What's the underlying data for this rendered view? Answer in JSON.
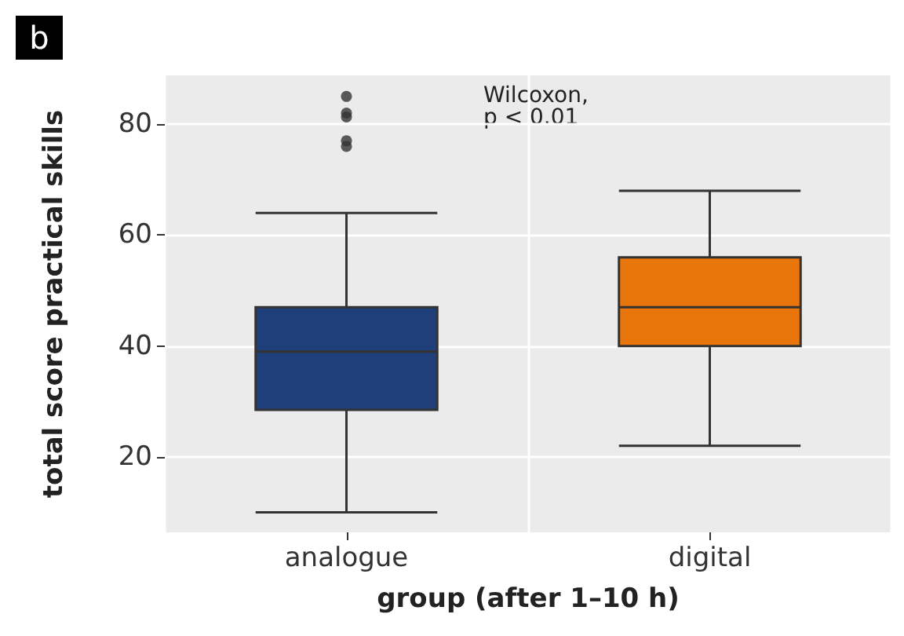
{
  "chart_data": {
    "type": "box",
    "xlabel": "group (after 1–10 h)",
    "ylabel": "total score practical skills",
    "annotations": [
      "b",
      "Wilcoxon,\np < 0.01"
    ],
    "categories": [
      "analogue",
      "digital"
    ],
    "boxes": [
      {
        "low": 10,
        "q1": 28.5,
        "median": 39,
        "q3": 47,
        "high": 64,
        "outliers": [
          85,
          82,
          81.3,
          77,
          76
        ]
      },
      {
        "low": 22,
        "q1": 40,
        "median": 47,
        "q3": 56,
        "high": 68
      }
    ],
    "colors": [
      "#1f3f7a",
      "#e8760b"
    ],
    "ylim": [
      6.4,
      88.8
    ],
    "yticks": [
      20,
      40,
      60,
      80
    ],
    "grid": true
  }
}
